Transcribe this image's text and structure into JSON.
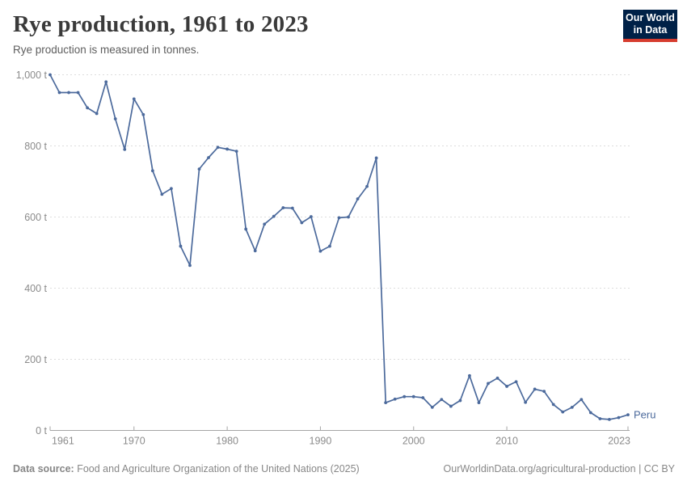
{
  "header": {
    "title": "Rye production, 1961 to 2023",
    "subtitle": "Rye production is measured in tonnes."
  },
  "logo": {
    "line1": "Our World",
    "line2": "in Data",
    "bg_color": "#002147",
    "bar_color": "#d63c2f"
  },
  "chart_data": {
    "type": "line",
    "title": "Rye production, 1961 to 2023",
    "unit": "tonnes",
    "xlim": [
      1961,
      2023
    ],
    "ylim": [
      0,
      1000
    ],
    "x_ticks": [
      1961,
      1970,
      1980,
      1990,
      2000,
      2010,
      2023
    ],
    "y_ticks": [
      0,
      200,
      400,
      600,
      800,
      1000
    ],
    "y_tick_labels": [
      "0 t",
      "200 t",
      "400 t",
      "600 t",
      "800 t",
      "1,000 t"
    ],
    "grid": "dashed-horizontal",
    "legend": "end-of-line-label",
    "series": [
      {
        "name": "Peru",
        "color": "#4c6a9c",
        "x": [
          1961,
          1962,
          1963,
          1964,
          1965,
          1966,
          1967,
          1968,
          1969,
          1970,
          1971,
          1972,
          1973,
          1974,
          1975,
          1976,
          1977,
          1978,
          1979,
          1980,
          1981,
          1982,
          1983,
          1984,
          1985,
          1986,
          1987,
          1988,
          1989,
          1990,
          1991,
          1992,
          1993,
          1994,
          1995,
          1996,
          1997,
          1998,
          1999,
          2000,
          2001,
          2002,
          2003,
          2004,
          2005,
          2006,
          2007,
          2008,
          2009,
          2010,
          2011,
          2012,
          2013,
          2014,
          2015,
          2016,
          2017,
          2018,
          2019,
          2020,
          2021,
          2022,
          2023
        ],
        "values": [
          1000,
          950,
          950,
          950,
          907,
          891,
          980,
          876,
          790,
          932,
          888,
          730,
          664,
          680,
          518,
          464,
          735,
          767,
          796,
          791,
          785,
          566,
          505,
          580,
          602,
          626,
          625,
          584,
          601,
          504,
          518,
          598,
          600,
          651,
          686,
          766,
          78,
          88,
          95,
          95,
          92,
          65,
          87,
          68,
          84,
          154,
          78,
          132,
          147,
          124,
          137,
          79,
          116,
          110,
          73,
          52,
          65,
          87,
          50,
          33,
          31,
          36,
          44
        ]
      }
    ]
  },
  "footer": {
    "datasource_label": "Data source:",
    "datasource_text": " Food and Agriculture Organization of the United Nations (2025)",
    "credit_link": "OurWorldinData.org/agricultural-production",
    "credit_suffix": " | CC BY"
  },
  "colors": {
    "line": "#4c6a9c",
    "grid": "#dddddd",
    "axis": "#a5a5a5",
    "tick_label": "#8b8b8b",
    "title": "#3a3a3a",
    "subtitle": "#5e5e5e",
    "footer": "#878787"
  }
}
